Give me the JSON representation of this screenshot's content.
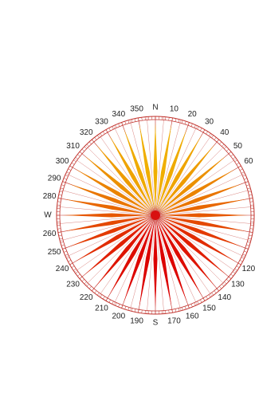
{
  "compass": {
    "cardinals": {
      "north": "N",
      "south": "S",
      "west": "W"
    },
    "degree_labels": [
      10,
      20,
      30,
      40,
      50,
      60,
      120,
      130,
      140,
      150,
      160,
      170,
      190,
      200,
      210,
      220,
      230,
      240,
      250,
      260,
      280,
      290,
      300,
      310,
      320,
      330,
      340,
      350
    ]
  }
}
